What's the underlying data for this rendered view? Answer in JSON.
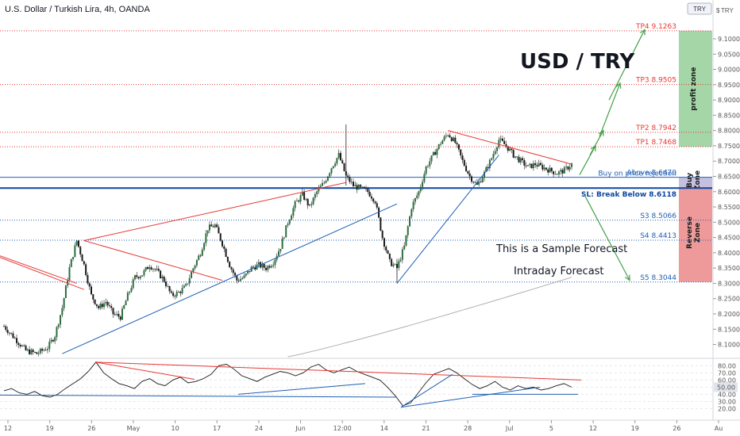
{
  "header": {
    "title": "U.S. Dollar / Turkish Lira, 4h, OANDA",
    "badge": "TRY",
    "axis_symbol": "TRY",
    "currency_tag": "$"
  },
  "annotations": {
    "headline": "USD / TRY",
    "sample": "This is a Sample Forecast",
    "intraday": "Intraday Forecast"
  },
  "zones": [
    {
      "label": "profit zone",
      "from": 8.7468,
      "to": 9.1263,
      "color": "#a5d6a7"
    },
    {
      "label": "Buy Zone",
      "from": 8.6118,
      "to": 8.647,
      "color": "#c5c0e0"
    },
    {
      "label": "Reverse Zone",
      "from": 8.3044,
      "to": 8.6118,
      "color": "#ef9a9a"
    }
  ],
  "levels": [
    {
      "label": "TP4 9.1263",
      "value": 9.1263,
      "color": "#e53935",
      "style": "dotted"
    },
    {
      "label": "TP3 8.9505",
      "value": 8.9505,
      "color": "#e53935",
      "style": "dotted"
    },
    {
      "label": "TP2 8.7942",
      "value": 8.7942,
      "color": "#e53935",
      "style": "dotted"
    },
    {
      "label": "TP1 8.7468",
      "value": 8.7468,
      "color": "#e53935",
      "style": "dotted"
    },
    {
      "label": "Buy on price rejection",
      "value": 8.647,
      "color": "#1e5fb3",
      "style": "solid",
      "label_above": true
    },
    {
      "label": "Above 8.6470",
      "value": 8.647,
      "color": "#1e5fb3",
      "style": "solid"
    },
    {
      "label": "SL: Break Below 8.6118",
      "value": 8.6118,
      "color": "#0d47a1",
      "style": "thick"
    },
    {
      "label": "S3 8.5066",
      "value": 8.5066,
      "color": "#1e5fb3",
      "style": "dotted"
    },
    {
      "label": "S4 8.4413",
      "value": 8.4413,
      "color": "#1e5fb3",
      "style": "dotted"
    },
    {
      "label": "S5 8.3044",
      "value": 8.3044,
      "color": "#1e5fb3",
      "style": "dotted"
    }
  ],
  "chart_data": [
    {
      "type": "candlestick",
      "title": "U.S. Dollar / Turkish Lira, 4h, OANDA",
      "ylim": [
        8.06,
        9.17
      ],
      "y_ticks": [
        8.1,
        8.15,
        8.2,
        8.25,
        8.3,
        8.35,
        8.4,
        8.45,
        8.5,
        8.55,
        8.6,
        8.65,
        8.7,
        8.75,
        8.8,
        8.85,
        8.9,
        8.95,
        9.0,
        9.05,
        9.1
      ],
      "x_ticks": [
        "12",
        "19",
        "26",
        "May",
        "10",
        "17",
        "24",
        "Jun",
        "12:00",
        "14",
        "21",
        "28",
        "Jul",
        "5",
        "12",
        "19",
        "26",
        "Au"
      ],
      "price_path": [
        [
          0,
          8.16
        ],
        [
          3,
          8.12
        ],
        [
          6,
          8.08
        ],
        [
          9,
          8.07
        ],
        [
          12,
          8.09
        ],
        [
          14,
          8.13
        ],
        [
          16,
          8.22
        ],
        [
          18,
          8.35
        ],
        [
          20,
          8.44
        ],
        [
          22,
          8.36
        ],
        [
          24,
          8.26
        ],
        [
          26,
          8.22
        ],
        [
          28,
          8.24
        ],
        [
          30,
          8.2
        ],
        [
          32,
          8.19
        ],
        [
          34,
          8.26
        ],
        [
          36,
          8.32
        ],
        [
          38,
          8.33
        ],
        [
          40,
          8.36
        ],
        [
          42,
          8.34
        ],
        [
          44,
          8.31
        ],
        [
          46,
          8.26
        ],
        [
          48,
          8.27
        ],
        [
          50,
          8.29
        ],
        [
          52,
          8.35
        ],
        [
          54,
          8.4
        ],
        [
          56,
          8.48
        ],
        [
          58,
          8.49
        ],
        [
          60,
          8.43
        ],
        [
          62,
          8.36
        ],
        [
          64,
          8.31
        ],
        [
          66,
          8.32
        ],
        [
          68,
          8.35
        ],
        [
          70,
          8.36
        ],
        [
          72,
          8.35
        ],
        [
          74,
          8.37
        ],
        [
          76,
          8.42
        ],
        [
          78,
          8.5
        ],
        [
          80,
          8.56
        ],
        [
          82,
          8.59
        ],
        [
          84,
          8.55
        ],
        [
          86,
          8.6
        ],
        [
          88,
          8.63
        ],
        [
          90,
          8.68
        ],
        [
          92,
          8.72
        ],
        [
          94,
          8.65
        ],
        [
          96,
          8.62
        ],
        [
          98,
          8.61
        ],
        [
          100,
          8.6
        ],
        [
          102,
          8.57
        ],
        [
          104,
          8.45
        ],
        [
          106,
          8.37
        ],
        [
          108,
          8.35
        ],
        [
          110,
          8.42
        ],
        [
          112,
          8.55
        ],
        [
          114,
          8.6
        ],
        [
          116,
          8.68
        ],
        [
          118,
          8.72
        ],
        [
          120,
          8.76
        ],
        [
          122,
          8.79
        ],
        [
          124,
          8.76
        ],
        [
          126,
          8.7
        ],
        [
          128,
          8.65
        ],
        [
          130,
          8.62
        ],
        [
          132,
          8.66
        ],
        [
          134,
          8.71
        ],
        [
          136,
          8.77
        ],
        [
          138,
          8.75
        ],
        [
          140,
          8.72
        ],
        [
          142,
          8.7
        ],
        [
          144,
          8.68
        ],
        [
          146,
          8.69
        ],
        [
          148,
          8.68
        ],
        [
          150,
          8.67
        ],
        [
          152,
          8.66
        ],
        [
          154,
          8.67
        ],
        [
          156,
          8.69
        ]
      ],
      "drawn_trendlines": [
        {
          "from": [
            22,
            8.44
          ],
          "to": [
            94,
            8.63
          ],
          "color": "#e53935"
        },
        {
          "from": [
            22,
            8.44
          ],
          "to": [
            60,
            8.31
          ],
          "color": "#e53935"
        },
        {
          "from": [
            16,
            8.07
          ],
          "to": [
            108,
            8.56
          ],
          "color": "#1e5fb3"
        },
        {
          "from": [
            108,
            8.3
          ],
          "to": [
            136,
            8.72
          ],
          "color": "#1e5fb3"
        },
        {
          "from": [
            122,
            8.8
          ],
          "to": [
            156,
            8.69
          ],
          "color": "#e53935"
        }
      ]
    },
    {
      "type": "line",
      "title": "",
      "ylim": [
        15,
        87
      ],
      "y_ticks": [
        20.0,
        30.0,
        40.0,
        50.0,
        60.0,
        70.0,
        80.0
      ],
      "current_value_label": "50.00",
      "values": [
        45,
        48,
        42,
        40,
        44,
        38,
        36,
        40,
        48,
        55,
        62,
        72,
        85,
        70,
        62,
        55,
        52,
        48,
        58,
        62,
        55,
        52,
        60,
        64,
        56,
        58,
        62,
        68,
        80,
        82,
        75,
        66,
        62,
        58,
        64,
        68,
        72,
        70,
        66,
        70,
        78,
        82,
        74,
        70,
        74,
        78,
        72,
        68,
        64,
        60,
        50,
        38,
        24,
        28,
        42,
        56,
        68,
        72,
        76,
        70,
        62,
        54,
        48,
        52,
        58,
        50,
        46,
        52,
        48,
        50,
        46,
        48,
        52,
        55,
        50
      ]
    }
  ]
}
